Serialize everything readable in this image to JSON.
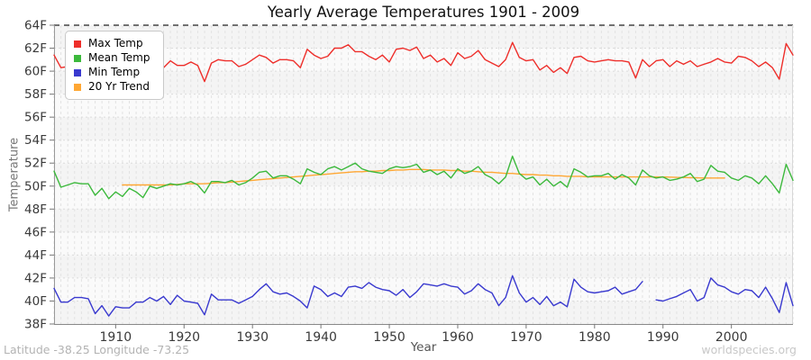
{
  "page": {
    "footer_left": "Latitude -38.25 Longitude -73.25",
    "footer_right": "worldspecies.org"
  },
  "chart_data": {
    "type": "line",
    "title": "Yearly Average Temperatures 1901 - 2009",
    "xlabel": "Year",
    "ylabel": "Temperature",
    "x_start": 1901,
    "x_end": 2009,
    "ylim": [
      38,
      64
    ],
    "y_tick_step": 2,
    "y_tick_suffix": "F",
    "x_ticks": [
      1910,
      1920,
      1930,
      1940,
      1950,
      1960,
      1970,
      1980,
      1990,
      2000
    ],
    "grid": "on",
    "legend_position": "top-left",
    "series": [
      {
        "name": "Max Temp",
        "color": "#ee2e2a",
        "values": [
          61.4,
          60.3,
          60.4,
          60.6,
          60.5,
          60.5,
          60.0,
          60.4,
          59.2,
          60.2,
          60.0,
          60.3,
          60.5,
          60.2,
          60.6,
          60.4,
          60.3,
          60.9,
          60.5,
          60.5,
          60.8,
          60.5,
          59.1,
          60.7,
          61.0,
          60.9,
          60.9,
          60.4,
          60.6,
          61.0,
          61.4,
          61.2,
          60.7,
          61.0,
          61.0,
          60.9,
          60.3,
          61.9,
          61.4,
          61.1,
          61.3,
          62.0,
          62.0,
          62.3,
          61.7,
          61.7,
          61.3,
          61.0,
          61.4,
          60.8,
          61.9,
          62.0,
          61.8,
          62.1,
          61.1,
          61.4,
          60.8,
          61.1,
          60.5,
          61.6,
          61.1,
          61.3,
          61.8,
          61.0,
          60.7,
          60.4,
          61.0,
          62.5,
          61.2,
          60.9,
          61.0,
          60.1,
          60.5,
          59.9,
          60.3,
          59.8,
          61.2,
          61.3,
          60.9,
          60.8,
          60.9,
          61.0,
          60.9,
          60.9,
          60.8,
          59.4,
          61.0,
          60.4,
          60.9,
          61.0,
          60.4,
          60.9,
          60.6,
          60.9,
          60.4,
          60.6,
          60.8,
          61.1,
          60.8,
          60.7,
          61.3,
          61.2,
          60.9,
          60.4,
          60.8,
          60.3,
          59.3,
          62.4,
          61.4
        ]
      },
      {
        "name": "Mean Temp",
        "color": "#3cb93c",
        "values": [
          51.3,
          49.9,
          50.1,
          50.3,
          50.2,
          50.2,
          49.2,
          49.8,
          48.9,
          49.5,
          49.1,
          49.8,
          49.5,
          49.0,
          50.0,
          49.8,
          50.0,
          50.2,
          50.1,
          50.2,
          50.4,
          50.1,
          49.4,
          50.4,
          50.4,
          50.3,
          50.5,
          50.1,
          50.3,
          50.7,
          51.2,
          51.3,
          50.7,
          50.9,
          50.9,
          50.6,
          50.2,
          51.5,
          51.2,
          51.0,
          51.5,
          51.7,
          51.4,
          51.7,
          52.0,
          51.5,
          51.3,
          51.2,
          51.1,
          51.5,
          51.7,
          51.6,
          51.7,
          51.9,
          51.2,
          51.4,
          51.0,
          51.3,
          50.7,
          51.5,
          51.1,
          51.3,
          51.7,
          51.0,
          50.7,
          50.2,
          50.8,
          52.6,
          51.1,
          50.6,
          50.8,
          50.1,
          50.6,
          50.0,
          50.4,
          49.9,
          51.5,
          51.2,
          50.8,
          50.9,
          50.9,
          51.1,
          50.6,
          51.0,
          50.7,
          50.1,
          51.4,
          50.9,
          50.7,
          50.8,
          50.5,
          50.6,
          50.8,
          51.1,
          50.4,
          50.6,
          51.8,
          51.3,
          51.2,
          50.7,
          50.5,
          50.9,
          50.7,
          50.2,
          50.9,
          50.2,
          49.4,
          51.9,
          50.5
        ]
      },
      {
        "name": "Min Temp",
        "color": "#3939cf",
        "values": [
          41.1,
          39.9,
          39.9,
          40.3,
          40.3,
          40.2,
          38.9,
          39.6,
          38.7,
          39.5,
          39.4,
          39.4,
          39.9,
          39.9,
          40.3,
          40.0,
          40.4,
          39.7,
          40.5,
          40.0,
          39.9,
          39.8,
          38.8,
          40.6,
          40.1,
          40.1,
          40.1,
          39.8,
          40.1,
          40.4,
          41.0,
          41.5,
          40.8,
          40.6,
          40.7,
          40.4,
          40.0,
          39.4,
          41.3,
          41.0,
          40.4,
          40.7,
          40.4,
          41.2,
          41.3,
          41.1,
          41.6,
          41.2,
          41.0,
          40.9,
          40.5,
          41.0,
          40.3,
          40.8,
          41.5,
          41.4,
          41.3,
          41.5,
          41.3,
          41.2,
          40.6,
          40.9,
          41.5,
          41.0,
          40.7,
          39.6,
          40.3,
          42.2,
          40.7,
          39.9,
          40.3,
          39.7,
          40.4,
          39.6,
          39.9,
          39.5,
          41.9,
          41.2,
          40.8,
          40.7,
          40.8,
          40.9,
          41.2,
          40.6,
          40.8,
          41.0,
          41.7,
          null,
          40.1,
          40.0,
          40.2,
          40.4,
          40.7,
          41.0,
          40.0,
          40.3,
          42.0,
          41.4,
          41.2,
          40.8,
          40.6,
          41.0,
          40.9,
          40.3,
          41.2,
          40.2,
          39.0,
          41.6,
          39.6
        ]
      },
      {
        "name": "20 Yr Trend",
        "color": "#ffa733",
        "values": [
          null,
          null,
          null,
          null,
          null,
          null,
          null,
          null,
          null,
          null,
          50.1,
          50.1,
          50.1,
          50.1,
          50.1,
          50.1,
          50.1,
          50.1,
          50.15,
          50.2,
          50.2,
          50.2,
          50.2,
          50.25,
          50.3,
          50.3,
          50.35,
          50.4,
          50.45,
          50.5,
          50.55,
          50.6,
          50.65,
          50.7,
          50.75,
          50.8,
          50.85,
          50.9,
          50.95,
          51.0,
          51.05,
          51.1,
          51.15,
          51.2,
          51.25,
          51.25,
          51.3,
          51.3,
          51.35,
          51.35,
          51.4,
          51.4,
          51.45,
          51.45,
          51.45,
          51.4,
          51.4,
          51.4,
          51.35,
          51.35,
          51.3,
          51.3,
          51.25,
          51.2,
          51.2,
          51.15,
          51.1,
          51.1,
          51.05,
          51.0,
          51.0,
          50.95,
          50.95,
          50.9,
          50.9,
          50.85,
          50.85,
          50.85,
          50.8,
          50.8,
          50.8,
          50.8,
          50.8,
          50.8,
          50.8,
          50.8,
          50.8,
          50.8,
          50.8,
          50.8,
          50.78,
          50.76,
          50.75,
          50.73,
          50.72,
          50.7,
          50.7,
          50.7,
          50.7,
          null,
          null,
          null,
          null,
          null,
          null,
          null,
          null,
          null,
          null
        ]
      }
    ]
  }
}
